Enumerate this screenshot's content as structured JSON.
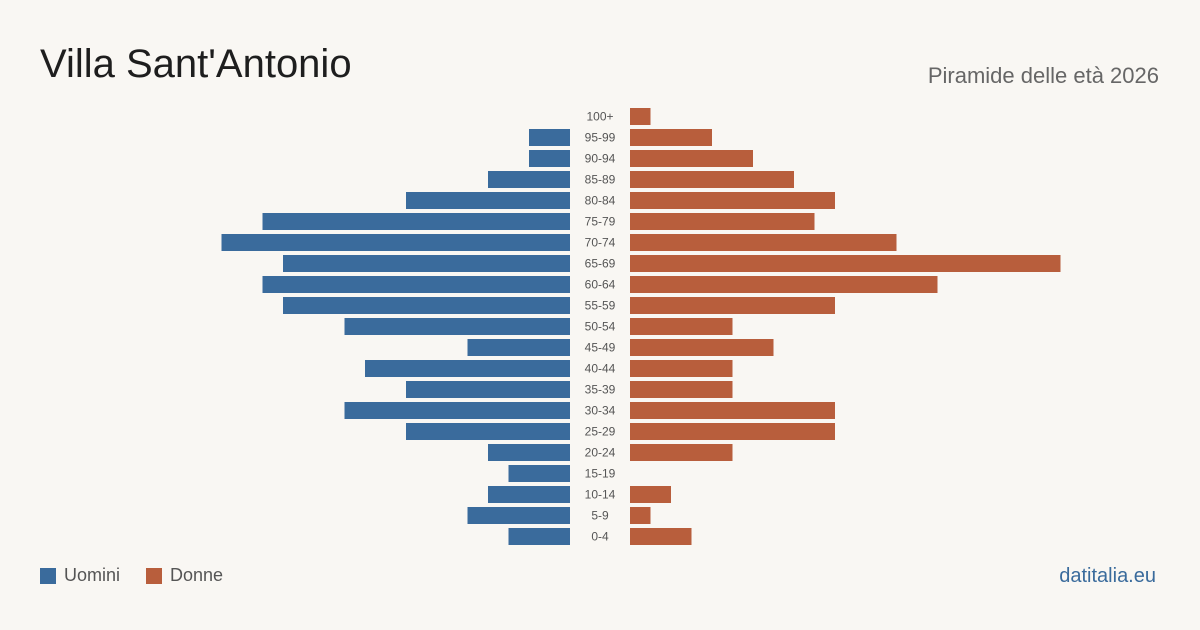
{
  "header": {
    "title": "Villa Sant'Antonio",
    "subtitle": "Piramide delle età 2026"
  },
  "legend": {
    "men_label": "Uomini",
    "women_label": "Donne"
  },
  "footer": {
    "source": "datitalia.eu"
  },
  "colors": {
    "men": "#3a6b9c",
    "women": "#b85e3c",
    "background": "#f9f7f3"
  },
  "chart_data": {
    "type": "bar",
    "orientation": "horizontal-pyramid",
    "categories": [
      "100+",
      "95-99",
      "90-94",
      "85-89",
      "80-84",
      "75-79",
      "70-74",
      "65-69",
      "60-64",
      "55-59",
      "50-54",
      "45-49",
      "40-44",
      "35-39",
      "30-34",
      "25-29",
      "20-24",
      "15-19",
      "10-14",
      "5-9",
      "0-4"
    ],
    "series": [
      {
        "name": "Uomini",
        "values": [
          0,
          2,
          2,
          4,
          8,
          15,
          17,
          14,
          15,
          14,
          11,
          5,
          10,
          8,
          11,
          8,
          4,
          3,
          4,
          5,
          3
        ]
      },
      {
        "name": "Donne",
        "values": [
          1,
          4,
          6,
          8,
          10,
          9,
          13,
          21,
          15,
          10,
          5,
          7,
          5,
          5,
          10,
          10,
          5,
          0,
          2,
          1,
          3
        ]
      }
    ],
    "grid": false,
    "legend_position": "bottom-left"
  }
}
